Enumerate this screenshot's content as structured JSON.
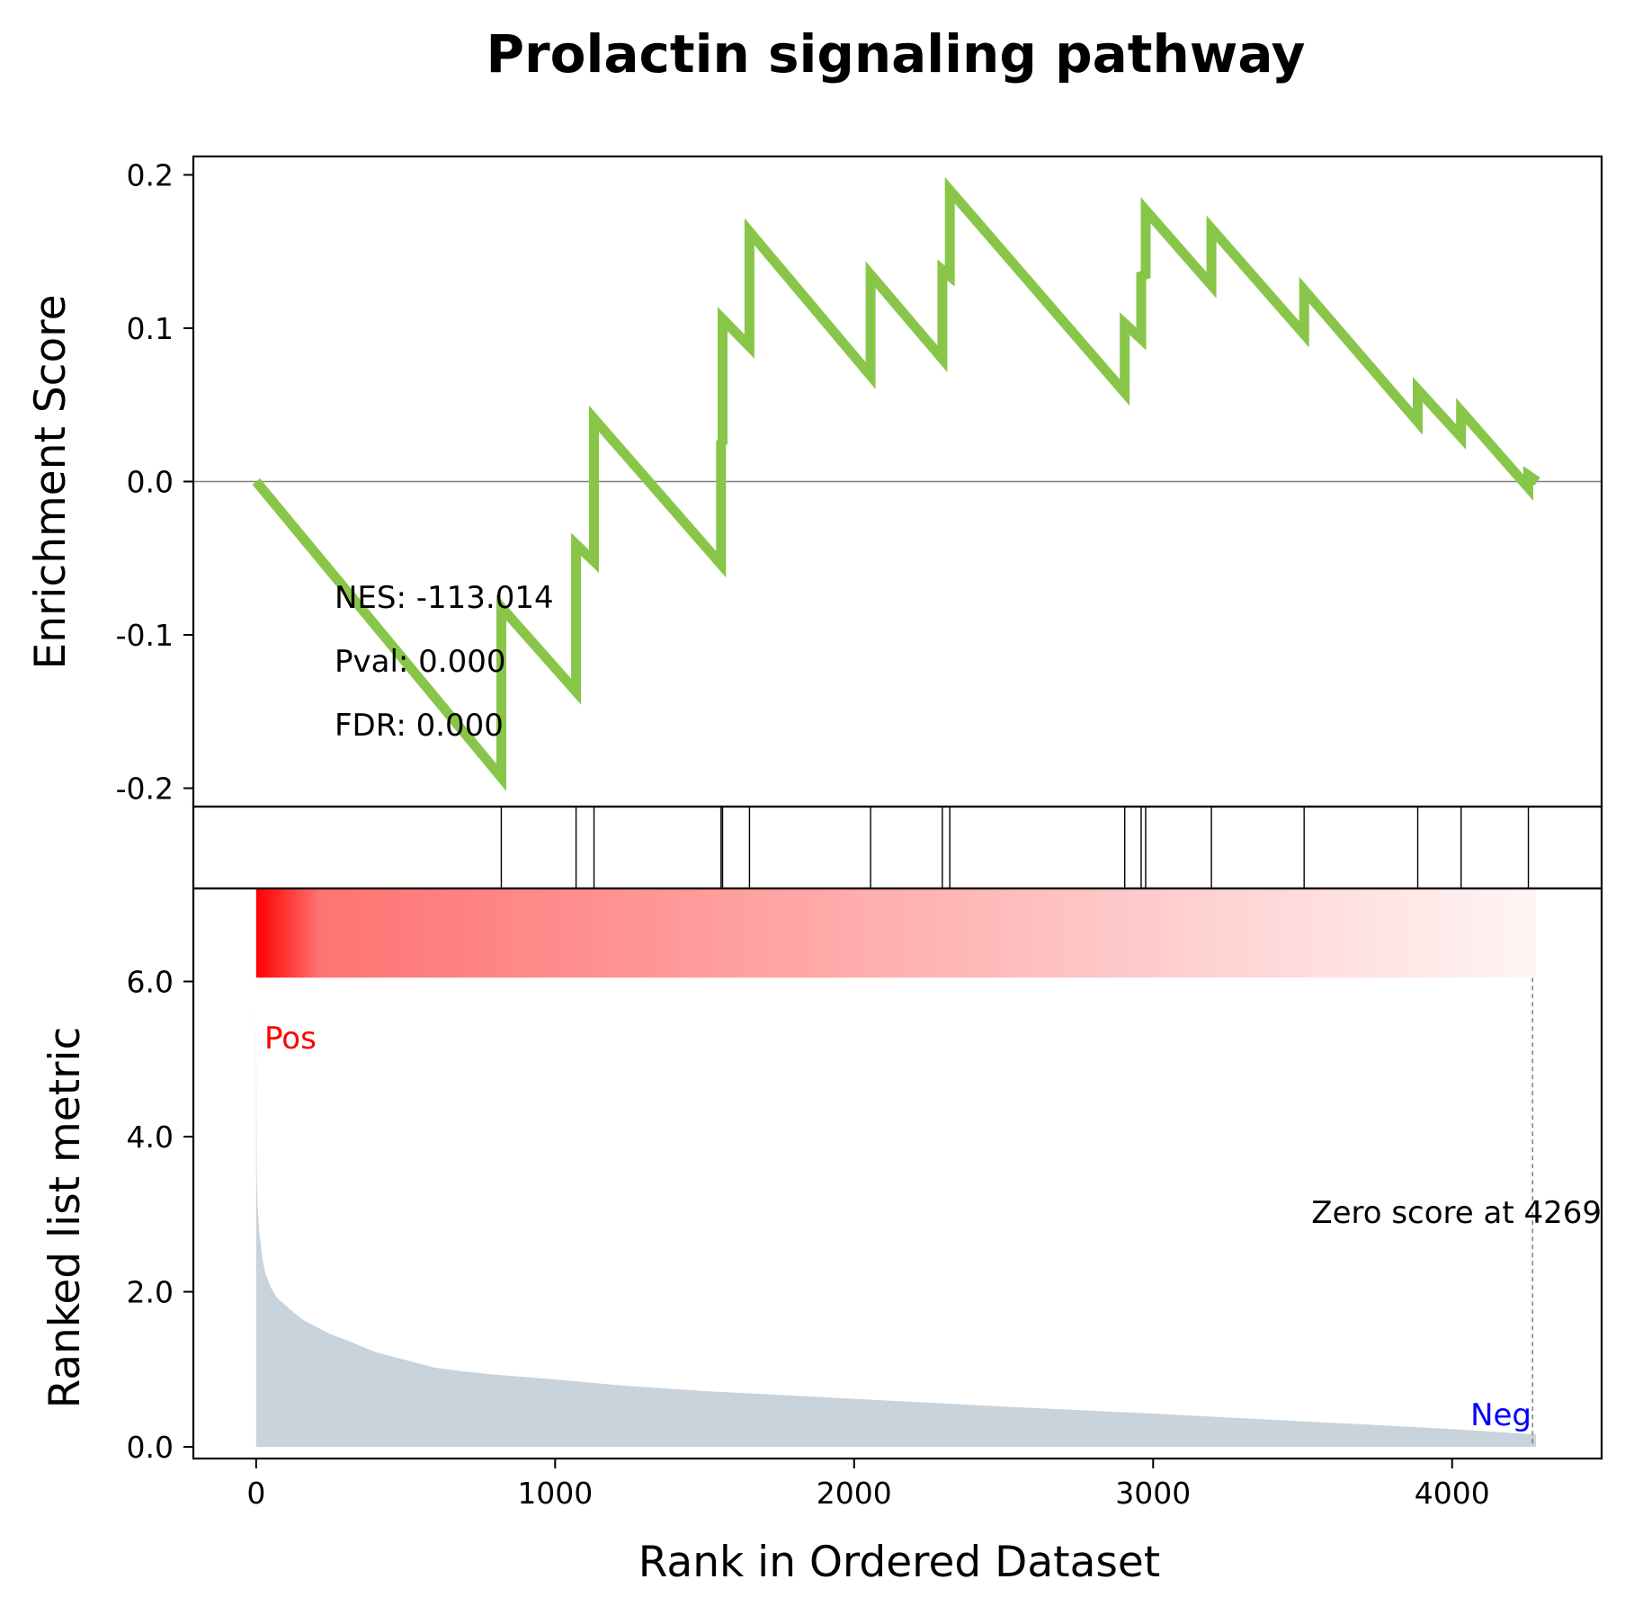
{
  "chart_data": {
    "type": "line",
    "title": "Prolactin signaling pathway",
    "xlabel": "Rank in Ordered Dataset",
    "ylabel_top": "Enrichment Score",
    "ylabel_bottom": "Ranked list metric",
    "xlim": [
      -210,
      4500
    ],
    "es_ylim": [
      -0.212,
      0.212
    ],
    "metric_ylim": [
      -0.15,
      7.2
    ],
    "x_ticks": [
      0,
      1000,
      2000,
      3000,
      4000
    ],
    "x_tick_labels": [
      "0",
      "1000",
      "2000",
      "3000",
      "4000"
    ],
    "es_ticks": [
      0.2,
      0.1,
      0.0,
      -0.1,
      -0.2
    ],
    "es_tick_labels": [
      "0.2",
      "0.1",
      "0.0",
      "-0.1",
      "-0.2"
    ],
    "metric_ticks": [
      6.0,
      4.0,
      2.0,
      0.0
    ],
    "metric_tick_labels": [
      "6.0",
      "4.0",
      "2.0",
      "0.0"
    ],
    "es_curve": {
      "color": "#88c64a",
      "x": [
        0,
        820,
        820,
        1070,
        1070,
        1130,
        1130,
        1555,
        1555,
        1560,
        1560,
        1650,
        1650,
        2055,
        2055,
        2295,
        2295,
        2320,
        2320,
        2905,
        2905,
        2960,
        2960,
        2975,
        2975,
        3195,
        3195,
        3505,
        3505,
        3885,
        3885,
        4030,
        4030,
        4255,
        4255,
        4285
      ],
      "y": [
        0.0,
        -0.193,
        -0.082,
        -0.137,
        -0.041,
        -0.052,
        0.041,
        -0.054,
        0.025,
        0.026,
        0.106,
        0.088,
        0.163,
        0.069,
        0.135,
        0.08,
        0.138,
        0.134,
        0.19,
        0.058,
        0.103,
        0.093,
        0.134,
        0.135,
        0.177,
        0.128,
        0.165,
        0.096,
        0.125,
        0.039,
        0.06,
        0.029,
        0.046,
        -0.004,
        0.004,
        0.0
      ]
    },
    "hits": [
      820,
      1070,
      1130,
      1555,
      1560,
      1650,
      2055,
      2295,
      2320,
      2905,
      2960,
      2975,
      3195,
      3505,
      3885,
      4030,
      4255
    ],
    "metric": {
      "color": "#c8d3dc",
      "x": [
        0,
        2,
        5,
        10,
        20,
        30,
        50,
        70,
        100,
        130,
        160,
        200,
        250,
        300,
        400,
        500,
        600,
        700,
        800,
        1000,
        1200,
        1500,
        1800,
        2000,
        2500,
        3000,
        3500,
        4000,
        4280
      ],
      "y": [
        5.8,
        3.5,
        3.1,
        2.8,
        2.45,
        2.25,
        2.05,
        1.92,
        1.82,
        1.72,
        1.63,
        1.55,
        1.45,
        1.38,
        1.22,
        1.12,
        1.02,
        0.97,
        0.93,
        0.87,
        0.8,
        0.72,
        0.66,
        0.62,
        0.52,
        0.43,
        0.33,
        0.23,
        0.16
      ]
    },
    "zero_score_rank": 4269,
    "heatmap": {
      "color": "#ff0000",
      "x_start": 0,
      "x_end": 4280,
      "alpha_start": 1.0,
      "alpha_end": 0.04
    },
    "stats": {
      "nes": "NES: -113.014",
      "pval": "Pval: 0.000",
      "fdr": "FDR: 0.000"
    },
    "zero_score_label": "Zero score at 4269",
    "pos_label": "Pos",
    "neg_label": "Neg",
    "pos_color": "#ff0000",
    "neg_color": "#0000ff"
  }
}
